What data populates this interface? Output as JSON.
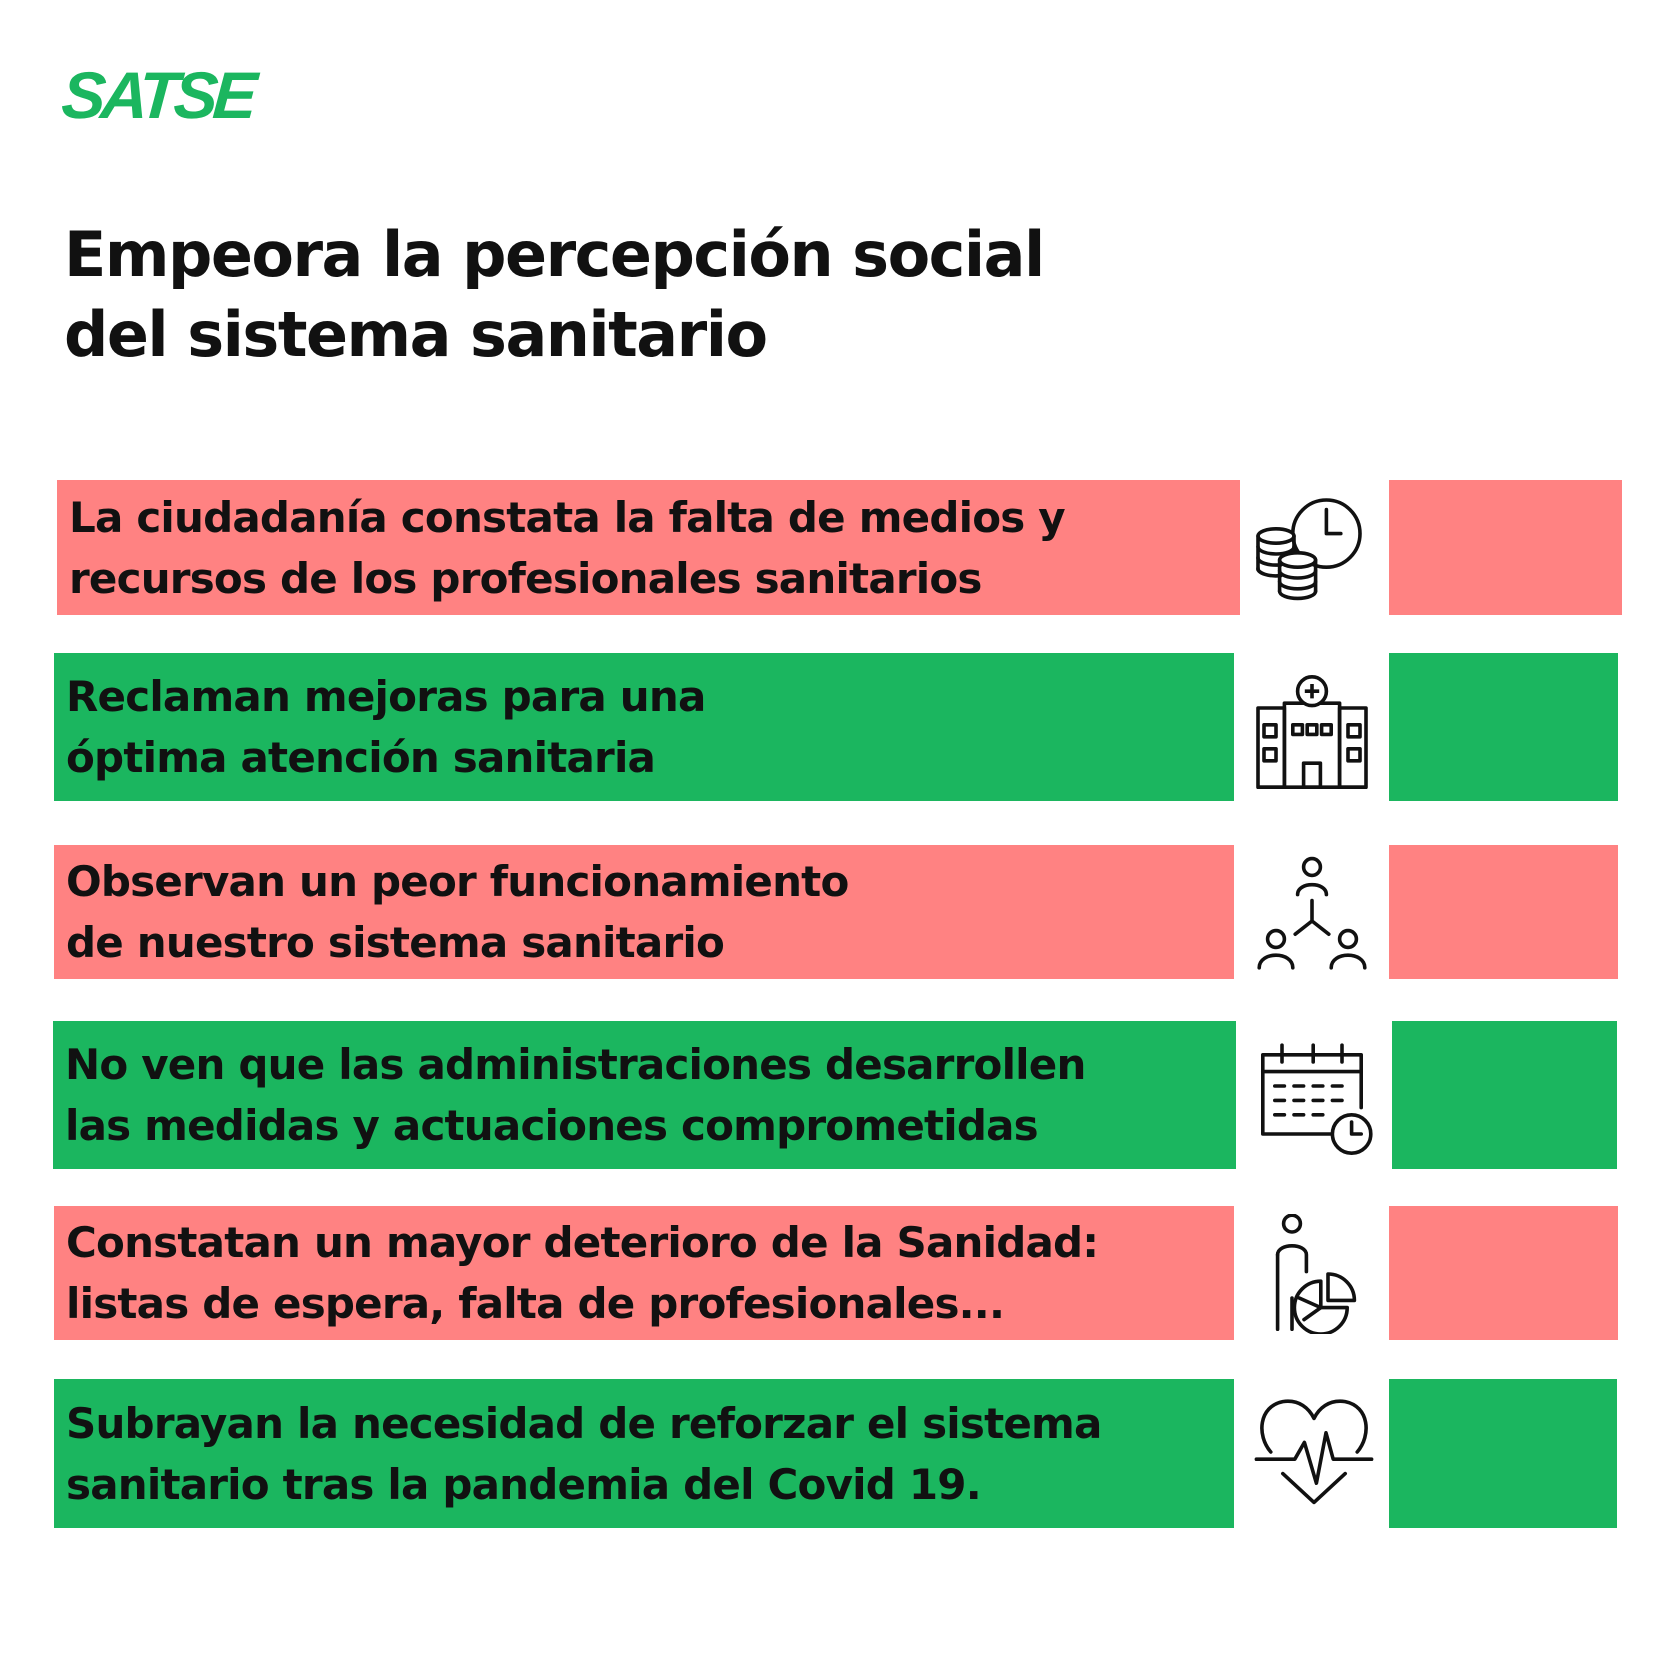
{
  "brand": {
    "logo_text": "SATSE"
  },
  "title": {
    "line1": "Empeora la percepción social",
    "line2": "del sistema sanitario"
  },
  "colors": {
    "red": "#FF8282",
    "green": "#1BB65F",
    "logo": "#1BB65F",
    "text": "#111111"
  },
  "rows": [
    {
      "color": "red",
      "icon": "coins-clock-icon",
      "line1": "La ciudadanía constata la falta de medios y",
      "line2": "recursos de los profesionales sanitarios"
    },
    {
      "color": "green",
      "icon": "hospital-icon",
      "line1": "Reclaman mejoras para una",
      "line2": "óptima atención sanitaria"
    },
    {
      "color": "red",
      "icon": "people-hierarchy-icon",
      "line1": "Observan un peor funcionamiento",
      "line2": "de nuestro sistema sanitario"
    },
    {
      "color": "green",
      "icon": "calendar-clock-icon",
      "line1": "No ven que las administraciones desarrollen",
      "line2": "las medidas y actuaciones comprometidas"
    },
    {
      "color": "red",
      "icon": "person-pie-chart-icon",
      "line1": "Constatan un mayor deterioro de la Sanidad:",
      "line2": "listas de espera, falta de profesionales..."
    },
    {
      "color": "green",
      "icon": "heart-pulse-icon",
      "line1": "Subrayan la necesidad de reforzar el sistema",
      "line2": "sanitario tras la pandemia del Covid 19."
    }
  ]
}
